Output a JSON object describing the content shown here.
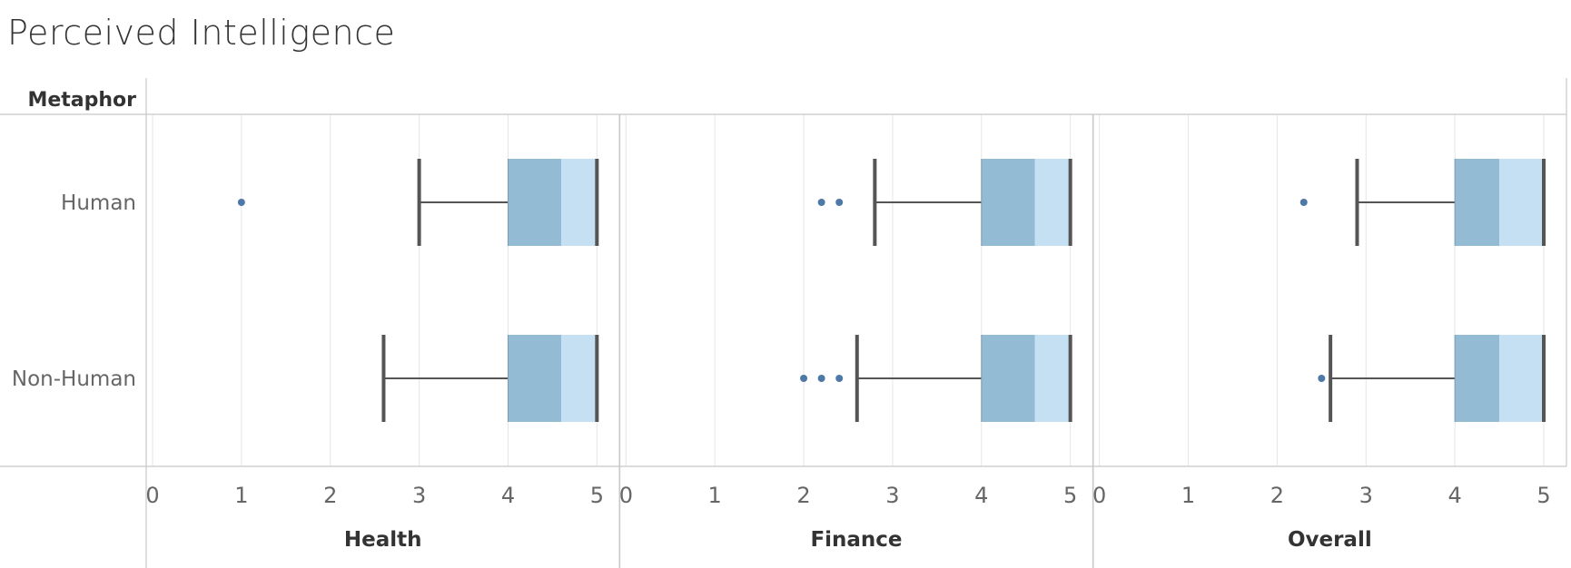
{
  "title": "Perceived Intelligence",
  "row_header": "Metaphor",
  "colors": {
    "box_lower": "#93bbd4",
    "box_upper": "#c4e0f2",
    "whisker": "#555555",
    "outlier": "#4e79a7",
    "grid": "#e6e6e6",
    "border": "#c8c8c8"
  },
  "chart_data": {
    "type": "box",
    "orientation": "horizontal",
    "categories": [
      "Human",
      "Non-Human"
    ],
    "x_ticks": [
      0,
      1,
      2,
      3,
      4,
      5
    ],
    "xlim": [
      0,
      5
    ],
    "grid": true,
    "panels": [
      {
        "name": "Health",
        "boxes": [
          {
            "category": "Human",
            "whisker_low": 3,
            "q1": 4,
            "median": 4.6,
            "q3": 5,
            "whisker_high": 5,
            "outliers": [
              1
            ]
          },
          {
            "category": "Non-Human",
            "whisker_low": 2.6,
            "q1": 4,
            "median": 4.6,
            "q3": 5,
            "whisker_high": 5,
            "outliers": []
          }
        ]
      },
      {
        "name": "Finance",
        "boxes": [
          {
            "category": "Human",
            "whisker_low": 2.8,
            "q1": 4,
            "median": 4.6,
            "q3": 5,
            "whisker_high": 5,
            "outliers": [
              2.2,
              2.4
            ]
          },
          {
            "category": "Non-Human",
            "whisker_low": 2.6,
            "q1": 4,
            "median": 4.6,
            "q3": 5,
            "whisker_high": 5,
            "outliers": [
              2.0,
              2.2,
              2.4
            ]
          }
        ]
      },
      {
        "name": "Overall",
        "boxes": [
          {
            "category": "Human",
            "whisker_low": 2.9,
            "q1": 4,
            "median": 4.5,
            "q3": 5,
            "whisker_high": 5,
            "outliers": [
              2.3
            ]
          },
          {
            "category": "Non-Human",
            "whisker_low": 2.6,
            "q1": 4,
            "median": 4.5,
            "q3": 5,
            "whisker_high": 5,
            "outliers": [
              2.5
            ]
          }
        ]
      }
    ]
  }
}
